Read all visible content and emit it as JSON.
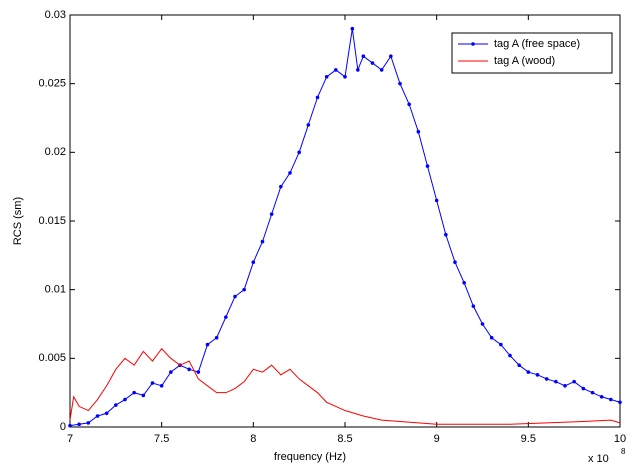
{
  "chart_data": {
    "type": "line",
    "x_label": "frequency (Hz)",
    "y_label": "RCS (sm)",
    "x_multiplier": "x 10",
    "x_multiplier_exponent": "8",
    "xlim": [
      7,
      10
    ],
    "xticks": [
      7,
      7.5,
      8,
      8.5,
      9,
      9.5,
      10
    ],
    "ylim": [
      0,
      0.03
    ],
    "yticks": [
      0,
      0.005,
      0.01,
      0.015,
      0.02,
      0.025,
      0.03
    ],
    "grid": false,
    "legend": "upper right",
    "series": [
      {
        "name": "tag A (free space)",
        "color": "#0000ff",
        "markers": true,
        "x": [
          7.0,
          7.05,
          7.1,
          7.15,
          7.2,
          7.25,
          7.3,
          7.35,
          7.4,
          7.45,
          7.5,
          7.55,
          7.6,
          7.65,
          7.7,
          7.75,
          7.8,
          7.85,
          7.9,
          7.95,
          8.0,
          8.05,
          8.1,
          8.15,
          8.2,
          8.25,
          8.3,
          8.35,
          8.4,
          8.45,
          8.5,
          8.54,
          8.57,
          8.6,
          8.65,
          8.7,
          8.75,
          8.8,
          8.85,
          8.9,
          8.95,
          9.0,
          9.05,
          9.1,
          9.15,
          9.2,
          9.25,
          9.3,
          9.35,
          9.4,
          9.45,
          9.5,
          9.55,
          9.6,
          9.65,
          9.7,
          9.75,
          9.8,
          9.85,
          9.9,
          9.95,
          10.0
        ],
        "values": [
          0.0001,
          0.0002,
          0.0003,
          0.0008,
          0.001,
          0.0016,
          0.002,
          0.0025,
          0.0023,
          0.0032,
          0.003,
          0.004,
          0.0045,
          0.0042,
          0.004,
          0.006,
          0.0065,
          0.008,
          0.0095,
          0.01,
          0.012,
          0.0135,
          0.0155,
          0.0175,
          0.0185,
          0.02,
          0.022,
          0.024,
          0.0255,
          0.026,
          0.0255,
          0.029,
          0.026,
          0.027,
          0.0265,
          0.026,
          0.027,
          0.025,
          0.0235,
          0.0215,
          0.019,
          0.0165,
          0.014,
          0.012,
          0.0105,
          0.0088,
          0.0075,
          0.0065,
          0.006,
          0.0052,
          0.0045,
          0.004,
          0.0038,
          0.0035,
          0.0033,
          0.003,
          0.0033,
          0.0028,
          0.0025,
          0.0022,
          0.002,
          0.0018
        ]
      },
      {
        "name": "tag A (wood)",
        "color": "#ff0000",
        "markers": false,
        "x": [
          7.0,
          7.02,
          7.05,
          7.1,
          7.15,
          7.2,
          7.25,
          7.3,
          7.35,
          7.4,
          7.45,
          7.5,
          7.55,
          7.6,
          7.65,
          7.7,
          7.75,
          7.8,
          7.85,
          7.9,
          7.95,
          8.0,
          8.05,
          8.1,
          8.15,
          8.2,
          8.25,
          8.3,
          8.35,
          8.4,
          8.5,
          8.6,
          8.7,
          8.8,
          8.9,
          9.0,
          9.2,
          9.4,
          9.6,
          9.8,
          9.95,
          10.0
        ],
        "values": [
          0.0005,
          0.0022,
          0.0015,
          0.0012,
          0.002,
          0.003,
          0.0042,
          0.005,
          0.0045,
          0.0055,
          0.0048,
          0.0057,
          0.005,
          0.0045,
          0.0048,
          0.0035,
          0.003,
          0.0025,
          0.0025,
          0.0028,
          0.0033,
          0.0042,
          0.004,
          0.0045,
          0.0038,
          0.0042,
          0.0035,
          0.003,
          0.0025,
          0.0018,
          0.0012,
          0.0008,
          0.0005,
          0.0004,
          0.0003,
          0.0002,
          0.0002,
          0.0002,
          0.0003,
          0.0004,
          0.0005,
          0.0003
        ]
      }
    ]
  }
}
